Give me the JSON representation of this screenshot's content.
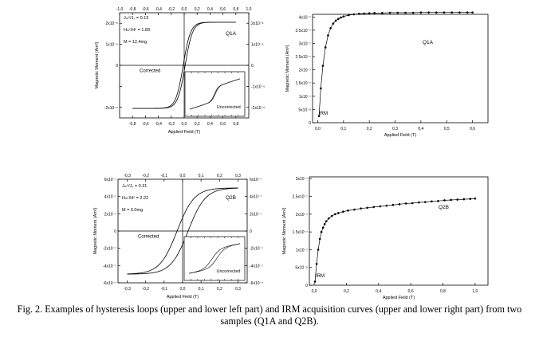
{
  "caption": "Fig. 2. Examples of hysteresis loops (upper and lower left part) and IRM acquisition curves (upper and lower right part) from two samples (Q1A and Q2B).",
  "chart_data": [
    {
      "id": "hyst_q1a",
      "type": "line",
      "sample": "Q1A",
      "xlabel": "Applied Field (T)",
      "ylabel": "Magnetic Moment (Am²)",
      "xlim": [
        -1.0,
        1.0
      ],
      "ylim": [
        -2.5e-06,
        2.5e-06
      ],
      "bottom_ticks": [
        -0.8,
        -0.6,
        -0.4,
        -0.2,
        0.0,
        0.2,
        0.4,
        0.6,
        0.8
      ],
      "bottom_tick_labels": [
        "-0,8",
        "-0,6",
        "-0,4",
        "-0,2",
        "0,0",
        "0,2",
        "0,4",
        "0,6",
        "0,8"
      ],
      "top_ticks": [
        -1.0,
        -0.8,
        -0.6,
        -0.4,
        -0.2,
        0.0,
        0.2,
        0.4,
        0.6,
        0.8,
        1.0
      ],
      "top_tick_labels": [
        "-1,0",
        "-0,8",
        "-0,6",
        "-0,4",
        "-0,2",
        "0,0",
        "0,2",
        "0,4",
        "0,6",
        "0,8",
        "1,0"
      ],
      "y_ticks": [
        -2e-06,
        -1e-06,
        0,
        1e-06,
        2e-06
      ],
      "y_tick_labels": [
        "-2x10⁻⁶",
        "",
        "0",
        "1x10⁻⁶",
        "2x10⁻⁶"
      ],
      "y_right_tick_labels": [
        "-2x10⁻⁶",
        "-1x10⁻⁶",
        "0",
        "1x10⁻⁶",
        "2x10⁻⁶"
      ],
      "params": [
        "Jₘˢ/Jₛ = 0.13",
        "Hₘʳ/Hᶜ = 1.89",
        "M = 12.4mg"
      ],
      "label_corrected": "Corrected",
      "label_uncorrected": "Uncorrected",
      "loop": {
        "Ms": 2.05e-06,
        "Mrs_ratio": 0.13,
        "Hc": 0.015,
        "Hsat": 0.5,
        "field_range": [
          -0.8,
          0.8
        ]
      },
      "inset": {
        "slope": 3e-06,
        "field_range": [
          -0.8,
          0.8
        ]
      }
    },
    {
      "id": "irm_q1a",
      "type": "scatter",
      "sample": "Q1A",
      "xlabel": "Applied Field (T)",
      "ylabel": "Magnetic Moment (Am²)",
      "xlim": [
        -0.02,
        0.66
      ],
      "ylim": [
        0,
        4.1e-07
      ],
      "x_ticks": [
        0.0,
        0.1,
        0.2,
        0.3,
        0.4,
        0.5,
        0.6
      ],
      "x_tick_labels": [
        "0,0",
        "0,1",
        "0,2",
        "0,3",
        "0,4",
        "0,5",
        "0,6"
      ],
      "y_ticks": [
        0,
        5e-08,
        1e-07,
        1.5e-07,
        2e-07,
        2.5e-07,
        3e-07,
        3.5e-07,
        4e-07
      ],
      "y_tick_labels": [
        "0",
        "5x10⁻⁸",
        "1x10⁻⁷",
        "1.5x10⁻⁷",
        "2x10⁻⁷",
        "2.5x10⁻⁷",
        "3x10⁻⁷",
        "3.5x10⁻⁷",
        "4x10⁻⁷"
      ],
      "label_irm": "IRM",
      "x": [
        0.005,
        0.012,
        0.02,
        0.03,
        0.04,
        0.05,
        0.06,
        0.07,
        0.08,
        0.09,
        0.1,
        0.12,
        0.14,
        0.16,
        0.18,
        0.2,
        0.22,
        0.25,
        0.28,
        0.31,
        0.34,
        0.37,
        0.4,
        0.43,
        0.46,
        0.49,
        0.52,
        0.55,
        0.58,
        0.6
      ],
      "y": [
        2.5e-08,
        1.3e-07,
        2.15e-07,
        2.85e-07,
        3.3e-07,
        3.58e-07,
        3.75e-07,
        3.86e-07,
        3.93e-07,
        3.98e-07,
        4.02e-07,
        4.07e-07,
        4.1e-07,
        4.12e-07,
        4.13e-07,
        4.14e-07,
        4.15e-07,
        4.15e-07,
        4.16e-07,
        4.16e-07,
        4.16e-07,
        4.16e-07,
        4.17e-07,
        4.17e-07,
        4.17e-07,
        4.17e-07,
        4.17e-07,
        4.17e-07,
        4.17e-07,
        4.17e-07
      ]
    },
    {
      "id": "hyst_q2b",
      "type": "line",
      "sample": "Q2B",
      "xlabel": "Applied Field (T)",
      "ylabel": "Magnetic Moment (Am²)",
      "xlim": [
        -0.35,
        0.35
      ],
      "ylim": [
        -6e-07,
        6e-07
      ],
      "bottom_ticks": [
        -0.3,
        -0.2,
        -0.1,
        0.0,
        0.1,
        0.2,
        0.3
      ],
      "bottom_tick_labels": [
        "-0,3",
        "-0,2",
        "-0,1",
        "0,0",
        "0,1",
        "0,2",
        "0,3"
      ],
      "top_ticks": [
        -0.3,
        -0.2,
        -0.1,
        0.0,
        0.1,
        0.2,
        0.3
      ],
      "top_tick_labels": [
        "-0,3",
        "-0,2",
        "-0,1",
        "0,0",
        "0,1",
        "0,2",
        "0,3"
      ],
      "y_ticks": [
        -6e-07,
        -4e-07,
        -2e-07,
        0,
        2e-07,
        4e-07,
        6e-07
      ],
      "y_tick_labels": [
        "-6x10⁻⁷",
        "-4x10⁻⁷",
        "-2x10⁻⁷",
        "0",
        "2x10⁻⁷",
        "4x10⁻⁷",
        "6x10⁻⁷"
      ],
      "y_right_tick_labels": [
        "-6x10⁻⁷",
        "-4x10⁻⁷",
        "-2x10⁻⁷",
        "0",
        "2x10⁻⁷",
        "4x10⁻⁷",
        "6x10⁻⁷"
      ],
      "params": [
        "Jₘˢ/Jₛ = 0.31",
        "Hₘʳ/Hᶜ = 2.22",
        "M = 6.0mg"
      ],
      "label_corrected": "Corrected",
      "label_uncorrected": "Uncorrected",
      "loop": {
        "Ms": 5e-07,
        "Mrs_ratio": 0.31,
        "Hc": 0.03,
        "Hsat": 0.22,
        "field_range": [
          -0.3,
          0.3
        ]
      },
      "inset": {
        "slope": 8e-07,
        "field_range": [
          -0.3,
          0.3
        ]
      }
    },
    {
      "id": "irm_q2b",
      "type": "scatter",
      "sample": "Q2B",
      "xlabel": "Applied Field (T)",
      "ylabel": "Magnetic Moment (Am²)",
      "xlim": [
        -0.03,
        1.08
      ],
      "ylim": [
        0,
        3.05e-07
      ],
      "x_ticks": [
        0.0,
        0.2,
        0.4,
        0.6,
        0.8,
        1.0
      ],
      "x_tick_labels": [
        "0,0",
        "0,2",
        "0,4",
        "0,6",
        "0,8",
        "1,0"
      ],
      "y_ticks": [
        0,
        5e-08,
        1e-07,
        1.5e-07,
        2e-07,
        2.5e-07,
        3e-07
      ],
      "y_tick_labels": [
        "0",
        "5x10⁻⁸",
        "1x10⁻⁷",
        "1.5x10⁻⁷",
        "2x10⁻⁷",
        "2.5x10⁻⁷",
        "3x10⁻⁷"
      ],
      "label_irm": "IRM",
      "x": [
        0.005,
        0.015,
        0.025,
        0.035,
        0.045,
        0.055,
        0.065,
        0.075,
        0.09,
        0.11,
        0.13,
        0.15,
        0.18,
        0.21,
        0.25,
        0.29,
        0.33,
        0.37,
        0.41,
        0.45,
        0.49,
        0.53,
        0.57,
        0.61,
        0.65,
        0.69,
        0.73,
        0.77,
        0.81,
        0.85,
        0.89,
        0.93,
        0.97,
        1.0
      ],
      "y": [
        1e-08,
        6e-08,
        1e-07,
        1.3e-07,
        1.5e-07,
        1.62e-07,
        1.72e-07,
        1.8e-07,
        1.88e-07,
        1.95e-07,
        2e-07,
        2.03e-07,
        2.07e-07,
        2.1e-07,
        2.13e-07,
        2.16e-07,
        2.18e-07,
        2.2e-07,
        2.22e-07,
        2.24e-07,
        2.26e-07,
        2.28e-07,
        2.3e-07,
        2.31e-07,
        2.33e-07,
        2.34e-07,
        2.36e-07,
        2.37e-07,
        2.39e-07,
        2.4e-07,
        2.41e-07,
        2.42e-07,
        2.43e-07,
        2.44e-07
      ]
    }
  ],
  "panel_labels": [
    "Q1A",
    "Q1A",
    "Q2B",
    "Q2B"
  ]
}
